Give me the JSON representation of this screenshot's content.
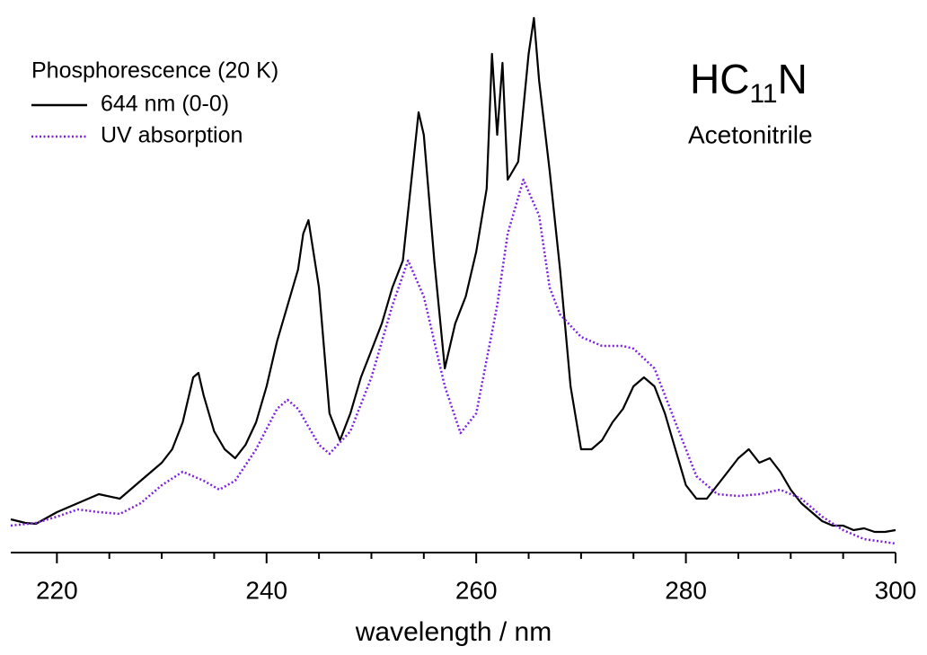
{
  "chart_data": {
    "type": "line",
    "legend_title": "Phosphorescence (20 K)",
    "legend": "upper left",
    "annotation": {
      "parts": [
        "HC",
        "11",
        "N"
      ],
      "subtitle": "Acetonitrile",
      "subtitle_color": "#7f1fe0"
    },
    "xlabel": "wavelength / nm",
    "xlim": [
      215.6,
      300
    ],
    "ylim": [
      0,
      605
    ],
    "xticks": [
      220,
      240,
      260,
      280,
      300
    ],
    "xminorticks": [
      225,
      230,
      235,
      245,
      250,
      255,
      265,
      270,
      275,
      285,
      290,
      295
    ],
    "series": [
      {
        "name": "644 nm (0-0)",
        "color": "#000000",
        "style": "solid",
        "x": [
          215.6,
          217,
          218,
          220,
          222,
          224,
          226,
          228,
          230,
          231,
          232,
          233,
          233.5,
          234,
          235,
          236,
          237,
          238,
          239,
          240,
          241,
          242,
          243,
          243.5,
          244,
          245,
          246,
          247,
          248,
          249,
          250,
          251,
          252,
          253,
          254,
          254.5,
          255,
          256,
          257,
          258,
          259,
          260,
          261,
          261.5,
          262,
          262.5,
          263,
          264,
          265,
          265.5,
          266,
          267,
          268,
          269,
          270,
          271,
          272,
          273,
          274,
          275,
          276,
          277,
          278,
          279,
          280,
          281,
          282,
          283,
          284,
          285,
          286,
          287,
          288,
          289,
          290,
          291,
          292,
          293,
          294,
          295,
          296,
          297,
          298,
          299,
          300
        ],
        "values": [
          37,
          33,
          32,
          45,
          55,
          65,
          60,
          80,
          100,
          115,
          145,
          195,
          200,
          175,
          135,
          115,
          105,
          120,
          145,
          185,
          235,
          275,
          315,
          355,
          370,
          295,
          155,
          125,
          155,
          195,
          225,
          255,
          295,
          325,
          435,
          490,
          465,
          325,
          205,
          255,
          285,
          335,
          405,
          555,
          465,
          545,
          415,
          435,
          555,
          595,
          525,
          425,
          315,
          185,
          115,
          115,
          125,
          145,
          160,
          185,
          195,
          185,
          155,
          115,
          75,
          60,
          60,
          75,
          90,
          105,
          115,
          100,
          105,
          90,
          70,
          55,
          45,
          35,
          30,
          30,
          25,
          27,
          23,
          23,
          25
        ]
      },
      {
        "name": "UV absorption",
        "color": "#7f1fe0",
        "style": "dotted",
        "x": [
          215.6,
          218,
          220,
          222,
          224,
          226,
          228,
          230,
          232,
          234,
          235.5,
          237,
          239,
          241,
          242,
          243,
          245,
          246,
          248,
          250,
          252,
          253.5,
          255,
          257,
          258.5,
          260,
          262,
          263,
          264.5,
          266,
          267,
          268,
          270,
          272,
          274,
          275,
          277,
          279,
          281,
          283,
          285,
          287,
          289,
          291,
          293,
          295,
          297,
          300
        ],
        "values": [
          30,
          33,
          40,
          48,
          45,
          43,
          55,
          75,
          90,
          80,
          70,
          80,
          115,
          160,
          170,
          160,
          120,
          110,
          135,
          195,
          275,
          325,
          285,
          185,
          133,
          155,
          275,
          355,
          415,
          375,
          295,
          265,
          240,
          230,
          230,
          227,
          205,
          145,
          85,
          65,
          63,
          65,
          70,
          60,
          40,
          25,
          15,
          10
        ]
      }
    ]
  }
}
